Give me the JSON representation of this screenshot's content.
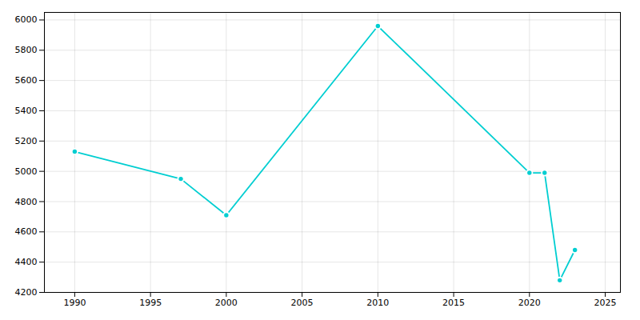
{
  "chart_data": {
    "type": "line",
    "x": [
      1990,
      1997,
      2000,
      2010,
      2020,
      2021,
      2022,
      2023
    ],
    "values": [
      5130,
      4950,
      4710,
      5960,
      4990,
      4990,
      4280,
      4480
    ],
    "color": "#00CED1",
    "marker": "circle",
    "xlim": [
      1988,
      2026
    ],
    "ylim": [
      4200,
      6050
    ],
    "xticks": [
      1990,
      1995,
      2000,
      2005,
      2010,
      2015,
      2020,
      2025
    ],
    "yticks": [
      4200,
      4400,
      4600,
      4800,
      5000,
      5200,
      5400,
      5600,
      5800,
      6000
    ],
    "grid": true
  }
}
